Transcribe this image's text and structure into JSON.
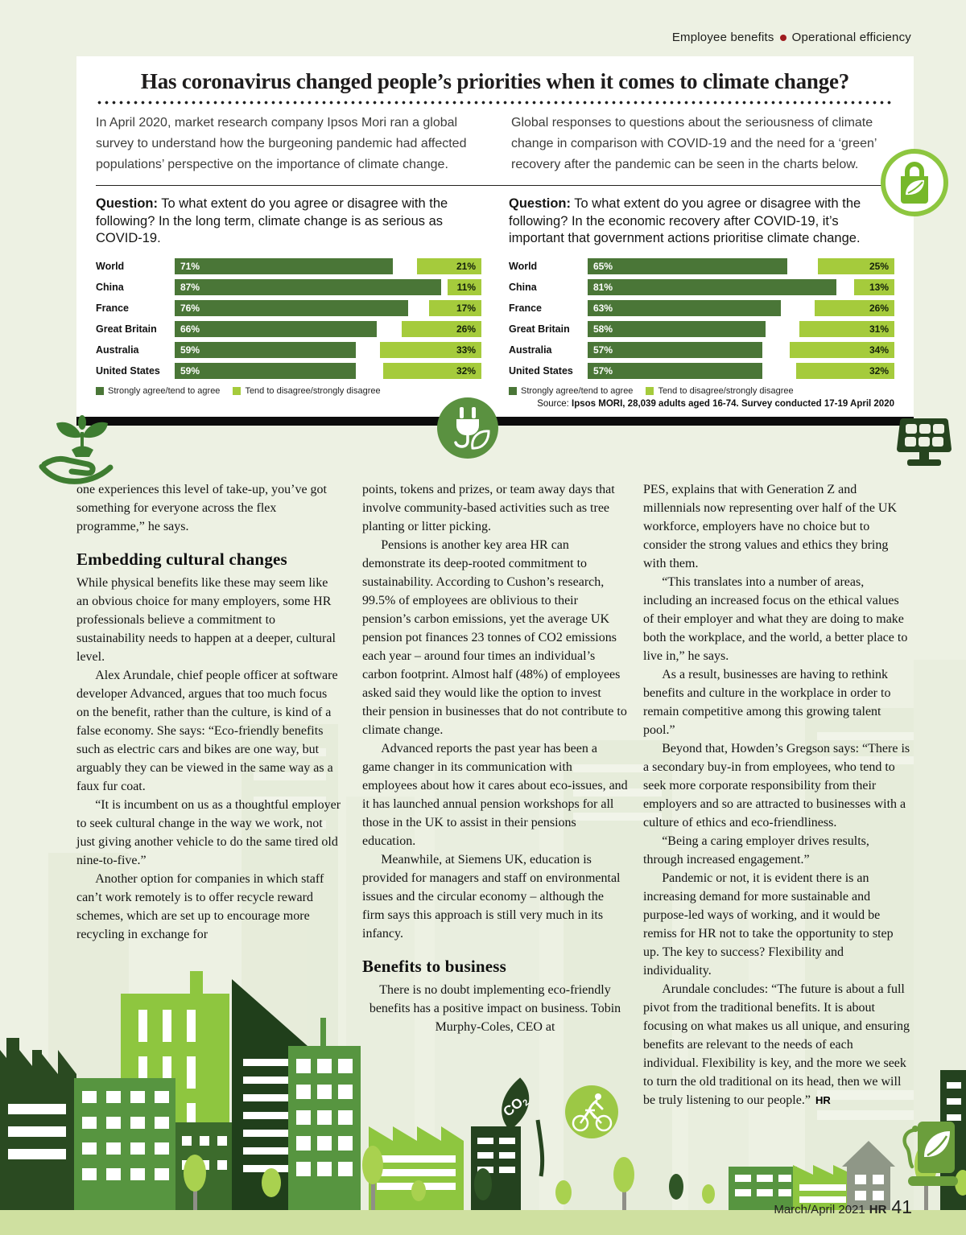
{
  "eyebrow": {
    "left": "Employee benefits",
    "right": "Operational efficiency"
  },
  "panel": {
    "title": "Has coronavirus changed people’s priorities when it comes to climate change?",
    "intro_left": "In April 2020, market research company Ipsos Mori ran a global survey to understand how the burgeoning pandemic had affected populations’ perspective on the importance of climate change.",
    "intro_right": "Global responses to questions about the seriousness of climate change in comparison with COVID-19 and the need for a ‘green’ recovery after the pandemic can be seen in the charts below.",
    "source_prefix": "Source:",
    "source_text": "Ipsos MORI, 28,039 adults aged 16-74. Survey conducted 17-19 April 2020"
  },
  "chart_data": [
    {
      "type": "bar",
      "question_label": "Question:",
      "question_text": "To what extent do you agree or disagree with the following? In the long term, climate change is as serious as COVID-19.",
      "categories": [
        "World",
        "China",
        "France",
        "Great Britain",
        "Australia",
        "United States"
      ],
      "series": [
        {
          "name": "Strongly agree/tend to agree",
          "values": [
            71,
            87,
            76,
            66,
            59,
            59
          ],
          "color": "#4a7637"
        },
        {
          "name": "Tend to disagree/strongly disagree",
          "values": [
            21,
            11,
            17,
            26,
            33,
            32
          ],
          "color": "#a5cb3c"
        }
      ],
      "value_suffix": "%",
      "xlim": [
        0,
        100
      ],
      "legend_position": "bottom"
    },
    {
      "type": "bar",
      "question_label": "Question:",
      "question_text": "To what extent do you agree or disagree with the following? In the economic recovery after COVID-19, it’s important that government actions prioritise climate change.",
      "categories": [
        "World",
        "China",
        "France",
        "Great Britain",
        "Australia",
        "United States"
      ],
      "series": [
        {
          "name": "Strongly agree/tend to agree",
          "values": [
            65,
            81,
            63,
            58,
            57,
            57
          ],
          "color": "#4a7637"
        },
        {
          "name": "Tend to disagree/strongly disagree",
          "values": [
            25,
            13,
            26,
            31,
            34,
            32
          ],
          "color": "#a5cb3c"
        }
      ],
      "value_suffix": "%",
      "xlim": [
        0,
        100
      ],
      "legend_position": "bottom"
    }
  ],
  "article": {
    "columns": [
      {
        "blocks": [
          {
            "type": "p",
            "text": "one experiences this level of take-up, you’ve got something for everyone across the flex programme,” he says."
          },
          {
            "type": "h",
            "text": "Embedding cultural changes"
          },
          {
            "type": "p",
            "text": "While physical benefits like these may seem like an obvious choice for many employers, some HR professionals believe a commitment to sustainability needs to happen at a deeper, cultural level."
          },
          {
            "type": "p",
            "text": "Alex Arundale, chief people officer at software developer Advanced, argues that too much focus on the benefit, rather than the culture, is kind of a false economy. She says: “Eco-friendly benefits such as electric cars and bikes are one way, but arguably they can be viewed in the same way as a faux fur coat."
          },
          {
            "type": "p",
            "text": "“It is incumbent on us as a thoughtful employer to seek cultural change in the way we work, not just giving another vehicle to do the same tired old nine-to-five.”"
          },
          {
            "type": "p",
            "text": "Another option for companies in which staff can’t work remotely is to offer recycle reward schemes, which are set up to encourage more recycling in exchange for"
          }
        ]
      },
      {
        "blocks": [
          {
            "type": "p",
            "text": "points, tokens and prizes, or team away days that involve community-based activities such as tree planting or litter picking."
          },
          {
            "type": "p",
            "text": "Pensions is another key area HR can demonstrate its deep-rooted commitment to sustainability. According to Cushon’s research, 99.5% of employees are oblivious to their pension’s carbon emissions, yet the average UK pension pot finances 23 tonnes of CO2 emissions each year – around four times an individual’s carbon footprint. Almost half (48%) of employees asked said they would like the option to invest their pension in businesses that do not contribute to climate change."
          },
          {
            "type": "p",
            "text": "Advanced reports the past year has been a game changer in its communication with employees about how it cares about eco-issues, and it has launched annual pension workshops for all those in the UK to assist in their pensions education."
          },
          {
            "type": "p",
            "text": "Meanwhile, at Siemens UK, education is provided for managers and staff on environmental issues and the circular economy – although the firm says this approach is still very much in its infancy."
          },
          {
            "type": "h",
            "text": "Benefits to business"
          },
          {
            "type": "p",
            "text": "There is no doubt implementing eco-friendly benefits has a positive impact on business. Tobin Murphy-Coles, CEO at"
          }
        ]
      },
      {
        "blocks": [
          {
            "type": "p",
            "text": "PES, explains that with Generation Z and millennials now representing over half of the UK workforce, employers have no choice but to consider the strong values and ethics they bring with them."
          },
          {
            "type": "p",
            "text": "“This translates into a number of areas, including an increased focus on the ethical values of their employer and what they are doing to make both the workplace, and the world, a better place to live in,” he says."
          },
          {
            "type": "p",
            "text": "As a result, businesses are having to rethink benefits and culture in the workplace in order to remain competitive among this growing talent pool.”"
          },
          {
            "type": "p",
            "text": "Beyond that, Howden’s Gregson says: “There is a secondary buy-in from employees, who tend to seek more corporate responsibility from their employers and so are attracted to businesses with a culture of ethics and eco-friendliness."
          },
          {
            "type": "p",
            "text": "“Being a caring employer drives results, through increased engagement.”"
          },
          {
            "type": "p",
            "text": "Pandemic or not, it is evident there is an increasing demand for more sustainable and purpose-led ways of working, and it would be remiss for HR not to take the opportunity to step up. The key to success? Flexibility and individuality."
          },
          {
            "type": "p",
            "text": "Arundale concludes: “The future is about a full pivot from the traditional benefits. It is about focusing on what makes us all unique, and ensuring benefits are relevant to the needs of each individual. Flexibility is key, and the more we seek to turn the old traditional on its head, then we will be truly listening to our people.”"
          }
        ]
      }
    ],
    "end_mark": "HR"
  },
  "footer": {
    "issue": "March/April 2021",
    "brand": "HR",
    "page": "41"
  },
  "icons": {
    "top_right": "leaf-shopping-bag",
    "panel_bottom_center": "power-plug-leaf",
    "panel_bottom_right": "solar-panel",
    "panel_bottom_left": "hand-holding-seedling",
    "bottom_right": "ev-charging-station",
    "skyline_badges": [
      "co2-leaf",
      "cyclist"
    ]
  },
  "colors": {
    "page_bg": "#edf1e3",
    "panel_bg": "#ffffff",
    "agree": "#4a7637",
    "disagree": "#a5cb3c",
    "accent_green": "#8dc63f",
    "eyebrow_dot": "#9e1b1e"
  }
}
